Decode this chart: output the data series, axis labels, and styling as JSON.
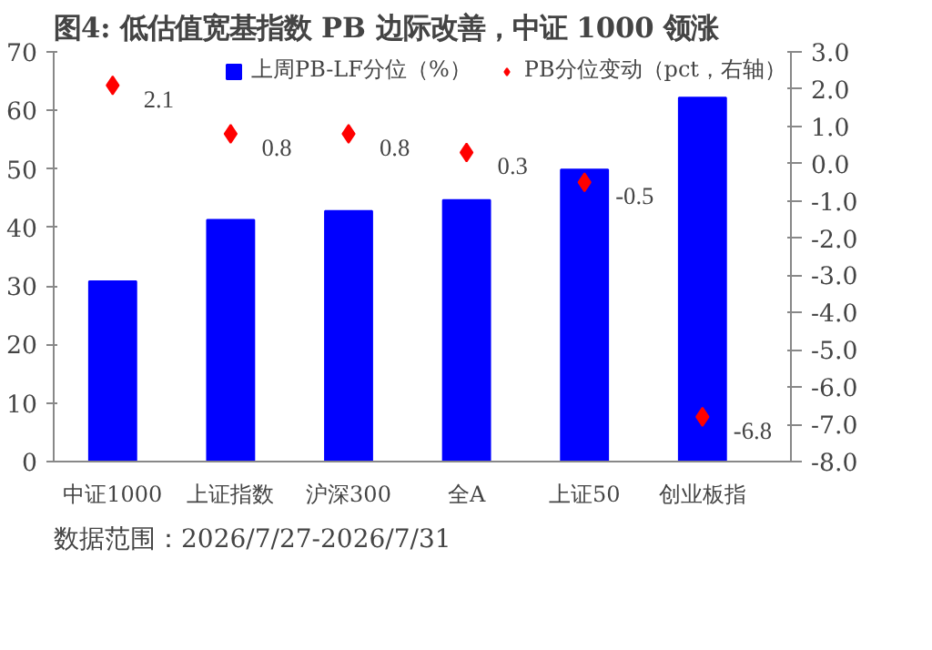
{
  "chart_data": {
    "type": "bar",
    "title": "图4:  低估值宽基指数 PB 边际改善，中证 1000 领涨",
    "categories": [
      "中证1000",
      "上证指数",
      "沪深300",
      "全A",
      "上证50",
      "创业板指"
    ],
    "series": [
      {
        "name": "上周PB-LF分位（%）",
        "color": "#0000ff",
        "values": [
          30.8,
          41.3,
          42.8,
          44.7,
          49.9,
          62.2
        ]
      },
      {
        "name": "PB分位变动（pct，右轴）",
        "type": "scatter",
        "axis": "y2",
        "color": "#ff0000",
        "marker": "diamond",
        "values": [
          2.1,
          0.8,
          0.8,
          0.3,
          -0.5,
          -6.8
        ],
        "value_labels": [
          "2.1",
          "0.8",
          "0.8",
          "0.3",
          "-0.5",
          "-6.8"
        ]
      }
    ],
    "ylim": [
      0,
      70
    ],
    "yticks": [
      0,
      10,
      20,
      30,
      40,
      50,
      60,
      70
    ],
    "y2lim": [
      -8,
      3
    ],
    "y2ticks": [
      {
        "value": 3,
        "label": "3.0"
      },
      {
        "value": 2,
        "label": "2.0"
      },
      {
        "value": 1,
        "label": "1.0"
      },
      {
        "value": 0,
        "label": "0.0"
      },
      {
        "value": -1,
        "label": "-1.0"
      },
      {
        "value": -2,
        "label": "-2.0"
      },
      {
        "value": -3,
        "label": "-3.0"
      },
      {
        "value": -4,
        "label": "-4.0"
      },
      {
        "value": -5,
        "label": "-5.0"
      },
      {
        "value": -6,
        "label": "-6.0"
      },
      {
        "value": -7,
        "label": "-7.0"
      },
      {
        "value": -8,
        "label": "-8.0"
      }
    ],
    "grid": false,
    "legend": "top",
    "annotations": [
      "数据范围：2026/7/27-2026/7/31"
    ]
  }
}
